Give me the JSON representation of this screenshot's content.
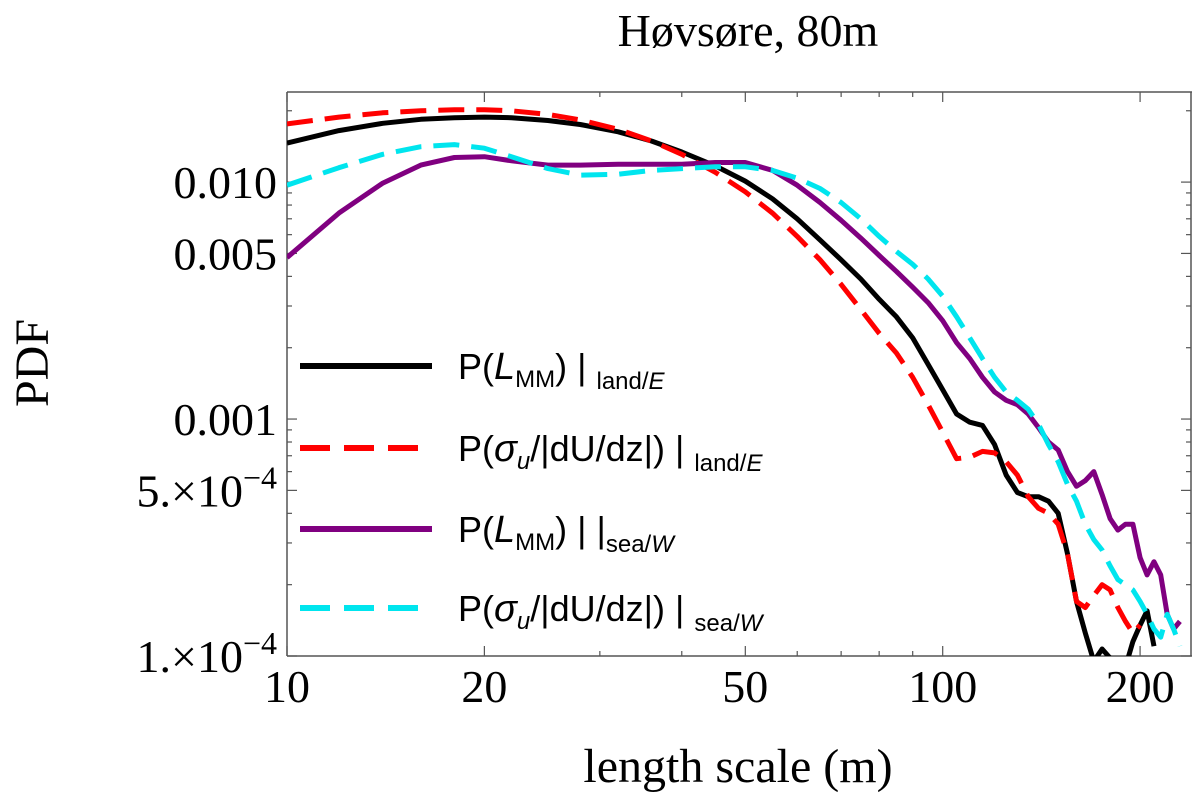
{
  "chart_data": {
    "type": "line",
    "title": "Høvsøre, 80m",
    "xlabel": "length scale (m)",
    "ylabel": "PDF",
    "x_scale": "log",
    "y_scale": "log",
    "xlim": [
      10,
      240
    ],
    "ylim": [
      0.0001,
      0.024
    ],
    "x_ticks": [
      {
        "value": 10,
        "label": "10"
      },
      {
        "value": 20,
        "label": "20"
      },
      {
        "value": 50,
        "label": "50"
      },
      {
        "value": 100,
        "label": "100"
      },
      {
        "value": 200,
        "label": "200"
      }
    ],
    "y_ticks": [
      {
        "value": 0.01,
        "label": "0.010"
      },
      {
        "value": 0.005,
        "label": "0.005"
      },
      {
        "value": 0.001,
        "label": "0.001"
      },
      {
        "value": 0.0005,
        "label_mantissa": "5.",
        "label_exponent": "−4"
      },
      {
        "value": 0.0001,
        "label_mantissa": "1.",
        "label_exponent": "−4"
      }
    ],
    "grid": false,
    "legend_position": "left-center",
    "series": [
      {
        "name": "P(L_MM)|land/E",
        "legend": {
          "lead": "P(",
          "var": "L",
          "var_sub": "MM",
          "tail": ")",
          "cond": "land/",
          "cond_var": "E"
        },
        "color": "#000000",
        "dash": "solid",
        "x": [
          10,
          12,
          14,
          16,
          18,
          20,
          22,
          25,
          28,
          32,
          36,
          40,
          45,
          50,
          55,
          60,
          65,
          70,
          75,
          80,
          85,
          90,
          95,
          100,
          105,
          110,
          115,
          120,
          125,
          130,
          135,
          140,
          145,
          150,
          155,
          160,
          165,
          170,
          175,
          180,
          185,
          190,
          195,
          200,
          205,
          210
        ],
        "y": [
          0.0146,
          0.0165,
          0.0177,
          0.0184,
          0.0187,
          0.0188,
          0.0187,
          0.0182,
          0.0175,
          0.0163,
          0.0149,
          0.0134,
          0.0117,
          0.0101,
          0.0085,
          0.007,
          0.0057,
          0.0047,
          0.0039,
          0.0032,
          0.0027,
          0.0022,
          0.0017,
          0.00133,
          0.00105,
          0.00097,
          0.00094,
          0.00078,
          0.00058,
          0.00049,
          0.00047,
          0.00047,
          0.00045,
          0.0004,
          0.00027,
          0.00017,
          0.000125,
          9.5e-05,
          0.000107,
          9.8e-05,
          8.5e-05,
          9e-05,
          0.000115,
          0.000135,
          0.000155,
          0.00011
        ]
      },
      {
        "name": "P(σ_u/|dU/dz|)|land/E",
        "legend": {
          "lead": "P(",
          "var": "σ",
          "var_sub": "u",
          "tail": "/|dU/dz|)",
          "cond": "land/",
          "cond_var": "E"
        },
        "color": "#ff0000",
        "dash": "long-dash",
        "x": [
          10,
          12,
          14,
          16,
          18,
          20,
          22,
          25,
          28,
          32,
          36,
          40,
          45,
          50,
          55,
          60,
          65,
          70,
          75,
          80,
          85,
          90,
          95,
          100,
          105,
          110,
          115,
          120,
          125,
          130,
          135,
          140,
          145,
          150,
          155,
          160,
          165,
          170,
          175,
          180,
          185,
          190,
          195,
          200
        ],
        "y": [
          0.0176,
          0.0188,
          0.0196,
          0.02,
          0.0202,
          0.0202,
          0.02,
          0.0193,
          0.0183,
          0.0167,
          0.0149,
          0.0131,
          0.011,
          0.0091,
          0.0074,
          0.0059,
          0.0047,
          0.0037,
          0.0029,
          0.0023,
          0.0019,
          0.0015,
          0.00115,
          0.00088,
          0.00068,
          0.00069,
          0.00073,
          0.00072,
          0.00066,
          0.00058,
          0.00047,
          0.00042,
          0.0004,
          0.00036,
          0.00027,
          0.00017,
          0.00016,
          0.00018,
          0.0002,
          0.00019,
          0.00016,
          0.00014,
          0.000125,
          0.000135
        ]
      },
      {
        "name": "P(L_MM)||sea/W",
        "legend": {
          "lead": "P(",
          "var": "L",
          "var_sub": "MM",
          "tail": ")",
          "bar_sep": "|",
          "cond": "sea/",
          "cond_var": "W"
        },
        "color": "#800080",
        "dash": "solid",
        "x": [
          10,
          12,
          14,
          16,
          18,
          20,
          22,
          25,
          28,
          32,
          36,
          40,
          45,
          50,
          55,
          60,
          65,
          70,
          75,
          80,
          85,
          90,
          95,
          100,
          105,
          110,
          115,
          120,
          125,
          130,
          135,
          140,
          145,
          150,
          155,
          160,
          165,
          170,
          175,
          180,
          185,
          190,
          195,
          200,
          205,
          210,
          215,
          220,
          225,
          230
        ],
        "y": [
          0.0048,
          0.0074,
          0.0099,
          0.0118,
          0.0127,
          0.0128,
          0.0123,
          0.0118,
          0.0118,
          0.0119,
          0.0119,
          0.0119,
          0.0121,
          0.0121,
          0.0112,
          0.0097,
          0.0082,
          0.0069,
          0.0058,
          0.0049,
          0.0042,
          0.0036,
          0.0031,
          0.0026,
          0.0021,
          0.0018,
          0.0015,
          0.0013,
          0.0012,
          0.00115,
          0.00105,
          0.00092,
          0.0008,
          0.00074,
          0.0006,
          0.00052,
          0.00055,
          0.0006,
          0.00048,
          0.00038,
          0.00034,
          0.00036,
          0.00036,
          0.00026,
          0.00022,
          0.00025,
          0.00022,
          0.00015,
          0.00013,
          0.00014
        ]
      },
      {
        "name": "P(σ_u/|dU/dz|)|sea/W",
        "legend": {
          "lead": "P(",
          "var": "σ",
          "var_sub": "u",
          "tail": "/|dU/dz|)",
          "cond": "sea/",
          "cond_var": "W"
        },
        "color": "#00e5ee",
        "dash": "long-dash",
        "x": [
          10,
          12,
          14,
          16,
          18,
          20,
          22,
          25,
          28,
          32,
          36,
          40,
          45,
          50,
          55,
          60,
          65,
          70,
          75,
          80,
          85,
          90,
          95,
          100,
          105,
          110,
          115,
          120,
          125,
          130,
          135,
          140,
          145,
          150,
          155,
          160,
          165,
          170,
          175,
          180,
          185,
          190,
          195,
          200,
          205,
          210,
          215,
          220,
          225,
          230
        ],
        "y": [
          0.0097,
          0.0115,
          0.0131,
          0.0141,
          0.0144,
          0.0139,
          0.0128,
          0.0114,
          0.0107,
          0.0108,
          0.0112,
          0.0114,
          0.0116,
          0.0116,
          0.0112,
          0.0104,
          0.0094,
          0.0082,
          0.007,
          0.0059,
          0.0051,
          0.0045,
          0.0039,
          0.0033,
          0.0027,
          0.0022,
          0.0018,
          0.0015,
          0.0013,
          0.0012,
          0.0011,
          0.00095,
          0.00078,
          0.00066,
          0.00053,
          0.00045,
          0.00036,
          0.00031,
          0.00028,
          0.00024,
          0.00021,
          0.0002,
          0.00019,
          0.00017,
          0.00015,
          0.00013,
          0.00012,
          0.00015,
          0.00013,
          0.00011
        ]
      }
    ]
  }
}
